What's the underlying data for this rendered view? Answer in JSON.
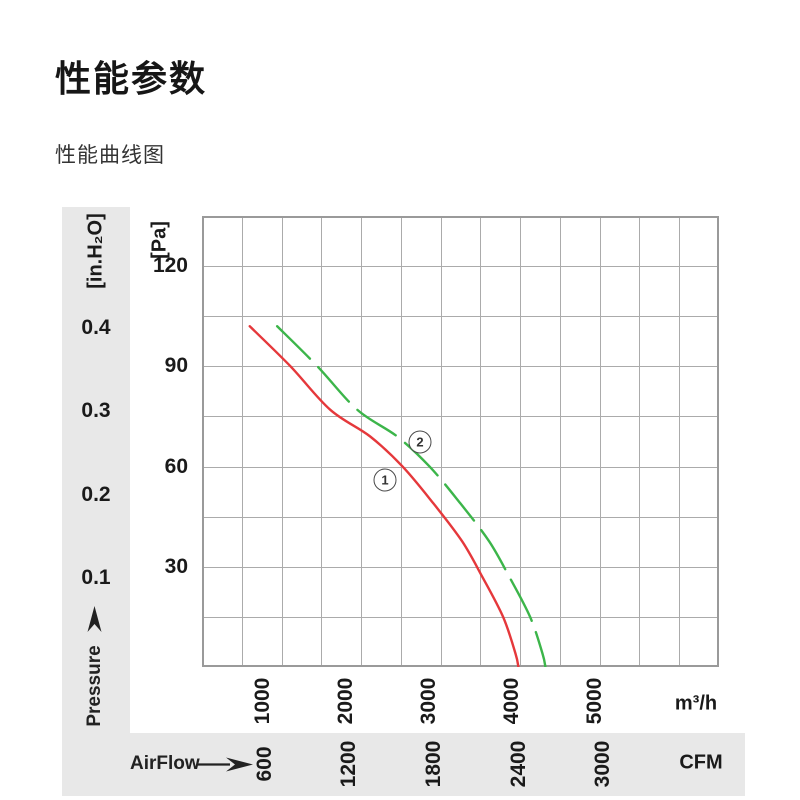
{
  "page": {
    "title": "性能参数",
    "subtitle": "性能曲线图"
  },
  "chart": {
    "y_left_unit": "[in.H₂O]",
    "y_right_unit": "[Pa]",
    "x_top_unit": "m³/h",
    "x_bottom_unit": "CFM",
    "y_axis_name": "Pressure",
    "x_axis_name": "AirFlow"
  },
  "chart_data": {
    "type": "line",
    "title": "性能曲线图",
    "x_axis": {
      "label": "AirFlow",
      "unit_primary": "m³/h",
      "unit_secondary": "CFM",
      "ticks_m3h": [
        1000,
        2000,
        3000,
        4000,
        5000
      ],
      "ticks_cfm": [
        600,
        1200,
        1800,
        2400,
        3000
      ],
      "cfm_to_m3h": 1.699,
      "xlim_m3h": [
        265,
        6490
      ]
    },
    "y_axis": {
      "label": "Pressure",
      "unit_primary": "Pa",
      "unit_secondary": "in.H₂O",
      "ticks_pa": [
        120,
        90,
        60,
        30
      ],
      "ticks_inh2o": [
        0.4,
        0.3,
        0.2,
        0.1
      ],
      "inh2o_to_pa": 249,
      "ylim_pa": [
        0,
        135
      ]
    },
    "grid": {
      "on": true,
      "cols": 13,
      "rows": 9
    },
    "series": [
      {
        "name": "curve-1",
        "marker": "1",
        "color": "#e5383b",
        "style": "solid",
        "points_m3h_pa": [
          [
            840,
            102
          ],
          [
            1330,
            90
          ],
          [
            1810,
            77
          ],
          [
            2290,
            69
          ],
          [
            2680,
            60
          ],
          [
            3050,
            49
          ],
          [
            3400,
            37.5
          ],
          [
            3640,
            27
          ],
          [
            3890,
            15
          ],
          [
            4040,
            4
          ],
          [
            4075,
            0
          ]
        ]
      },
      {
        "name": "curve-2",
        "marker": "2",
        "color": "#3cb54a",
        "style": "dashed",
        "points_m3h_pa": [
          [
            1170,
            102
          ],
          [
            1655,
            90
          ],
          [
            2135,
            77
          ],
          [
            2615,
            69
          ],
          [
            3005,
            60
          ],
          [
            3375,
            49
          ],
          [
            3725,
            37.5
          ],
          [
            3965,
            27
          ],
          [
            4215,
            15
          ],
          [
            4365,
            4
          ],
          [
            4400,
            0
          ]
        ]
      }
    ],
    "annotations": [
      {
        "label": "1",
        "x_m3h": 2468,
        "y_pa": 56.0
      },
      {
        "label": "2",
        "x_m3h": 2890,
        "y_pa": 67.3
      }
    ],
    "colors": {
      "grid": "#ababab",
      "border": "#9a9a9a",
      "axis_panel": "#e8e8e8",
      "text": "#1a1a1a"
    }
  }
}
